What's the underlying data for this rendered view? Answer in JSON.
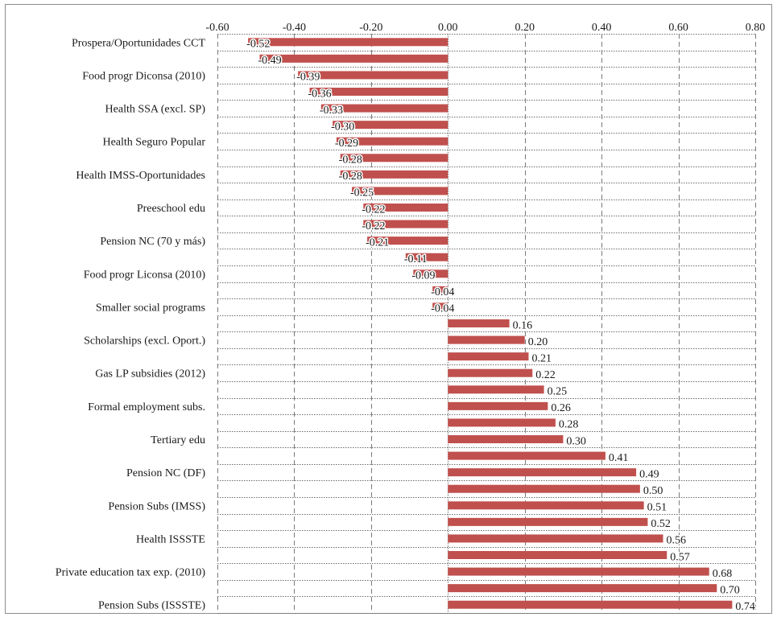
{
  "chart_data": {
    "type": "bar",
    "orientation": "horizontal",
    "grid": true,
    "xlim": [
      -0.6,
      0.8
    ],
    "x_ticks": [
      -0.6,
      -0.4,
      -0.2,
      0.0,
      0.2,
      0.4,
      0.6,
      0.8
    ],
    "x_tick_labels": [
      "-0.60",
      "-0.40",
      "-0.20",
      "0.00",
      "0.20",
      "0.40",
      "0.60",
      "0.80"
    ],
    "bar_color": "#c0504d",
    "bars": [
      {
        "category": "Prospera/Oportunidades CCT",
        "value": -0.52,
        "label": "-0.52"
      },
      {
        "category": "",
        "value": -0.49,
        "label": "-0.49"
      },
      {
        "category": "Food progr Diconsa (2010)",
        "value": -0.39,
        "label": "-0.39"
      },
      {
        "category": "",
        "value": -0.36,
        "label": "-0.36"
      },
      {
        "category": "Health SSA (excl. SP)",
        "value": -0.33,
        "label": "-0.33"
      },
      {
        "category": "",
        "value": -0.3,
        "label": "-0.30"
      },
      {
        "category": "Health Seguro Popular",
        "value": -0.29,
        "label": "-0.29"
      },
      {
        "category": "",
        "value": -0.28,
        "label": "-0.28"
      },
      {
        "category": "Health IMSS-Oportunidades",
        "value": -0.28,
        "label": "-0.28"
      },
      {
        "category": "",
        "value": -0.25,
        "label": "-0.25"
      },
      {
        "category": "Preeschool edu",
        "value": -0.22,
        "label": "-0.22"
      },
      {
        "category": "",
        "value": -0.22,
        "label": "-0.22"
      },
      {
        "category": "Pension NC (70 y más)",
        "value": -0.21,
        "label": "-0.21"
      },
      {
        "category": "",
        "value": -0.11,
        "label": "-0.11"
      },
      {
        "category": "Food progr Liconsa (2010)",
        "value": -0.09,
        "label": "-0.09"
      },
      {
        "category": "",
        "value": -0.04,
        "label": "-0.04"
      },
      {
        "category": "Smaller social programs",
        "value": -0.04,
        "label": "-0.04"
      },
      {
        "category": "",
        "value": 0.16,
        "label": "0.16"
      },
      {
        "category": "Scholarships (excl. Oport.)",
        "value": 0.2,
        "label": "0.20"
      },
      {
        "category": "",
        "value": 0.21,
        "label": "0.21"
      },
      {
        "category": "Gas LP subsidies (2012)",
        "value": 0.22,
        "label": "0.22"
      },
      {
        "category": "",
        "value": 0.25,
        "label": "0.25"
      },
      {
        "category": "Formal employment subs.",
        "value": 0.26,
        "label": "0.26"
      },
      {
        "category": "",
        "value": 0.28,
        "label": "0.28"
      },
      {
        "category": "Tertiary edu",
        "value": 0.3,
        "label": "0.30"
      },
      {
        "category": "",
        "value": 0.41,
        "label": "0.41"
      },
      {
        "category": "Pension NC (DF)",
        "value": 0.49,
        "label": "0.49"
      },
      {
        "category": "",
        "value": 0.5,
        "label": "0.50"
      },
      {
        "category": "Pension Subs  (IMSS)",
        "value": 0.51,
        "label": "0.51"
      },
      {
        "category": "",
        "value": 0.52,
        "label": "0.52"
      },
      {
        "category": "Health ISSSTE",
        "value": 0.56,
        "label": "0.56"
      },
      {
        "category": "",
        "value": 0.57,
        "label": "0.57"
      },
      {
        "category": "Private education tax exp. (2010)",
        "value": 0.68,
        "label": "0.68"
      },
      {
        "category": "",
        "value": 0.7,
        "label": "0.70"
      },
      {
        "category": "Pension Subs (ISSSTE)",
        "value": 0.74,
        "label": "0.74"
      }
    ]
  }
}
